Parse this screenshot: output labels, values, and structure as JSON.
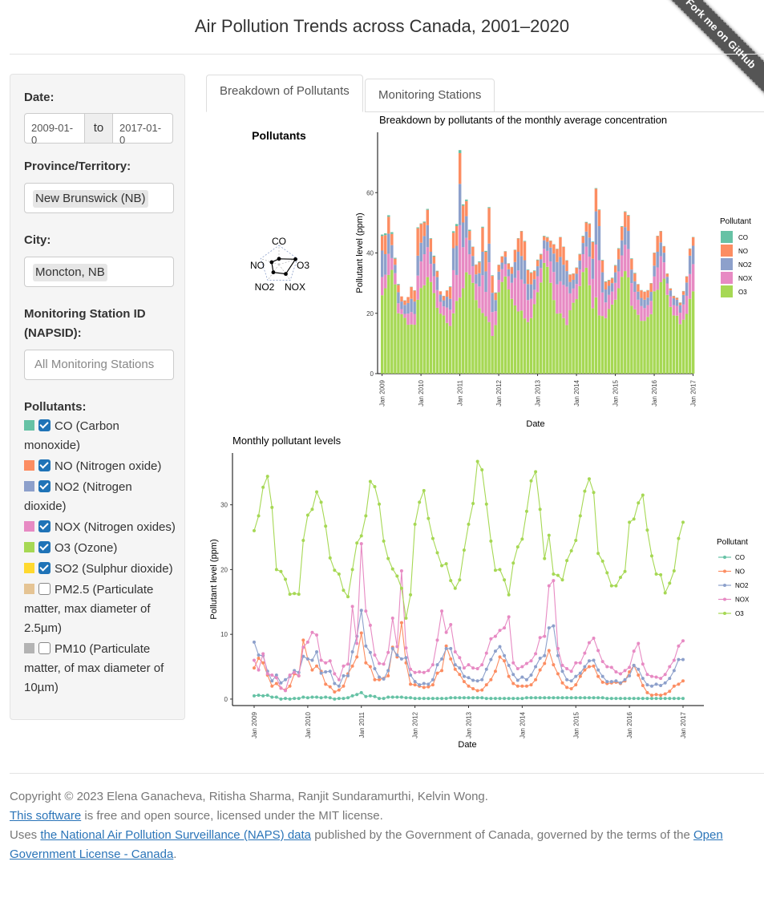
{
  "page": {
    "title": "Air Pollution Trends across Canada, 2001–2020",
    "ribbon": "Fork me on GitHub"
  },
  "sidebar": {
    "date_label": "Date:",
    "date_from": "2009-01-0",
    "date_sep": "to",
    "date_to": "2017-01-0",
    "province_label": "Province/Territory:",
    "province_value": "New Brunswick (NB)",
    "city_label": "City:",
    "city_value": "Moncton, NB",
    "station_label_1": "Monitoring Station ID",
    "station_label_2": "(NAPSID):",
    "station_placeholder": "All Monitoring Stations",
    "pollutants_label": "Pollutants:",
    "pollutants": [
      {
        "lines": [
          "CO (Carbon",
          "monoxide)"
        ],
        "color": "#66c2a5",
        "checked": true
      },
      {
        "lines": [
          "NO (Nitrogen oxide)"
        ],
        "color": "#fc8d62",
        "checked": true
      },
      {
        "lines": [
          "NO2 (Nitrogen",
          "dioxide)"
        ],
        "color": "#8da0cb",
        "checked": true
      },
      {
        "lines": [
          "NOX (Nitrogen oxides)"
        ],
        "color": "#e78ac3",
        "checked": true
      },
      {
        "lines": [
          "O3 (Ozone)"
        ],
        "color": "#a6d854",
        "checked": true
      },
      {
        "lines": [
          "SO2 (Sulphur dioxide)"
        ],
        "color": "#ffd92f",
        "checked": true
      },
      {
        "lines": [
          "PM2.5 (Particulate",
          "matter, max diameter of",
          "2.5µm)"
        ],
        "color": "#e5c494",
        "checked": false
      },
      {
        "lines": [
          "PM10 (Particulate",
          "matter, of max diameter of",
          "10µm)"
        ],
        "color": "#b3b3b3",
        "checked": false
      }
    ]
  },
  "tabs": {
    "active": "Breakdown of Pollutants",
    "other": "Monitoring Stations"
  },
  "radar": {
    "title": "Pollutants",
    "labels": [
      "CO",
      "O3",
      "NOX",
      "NO2",
      "NO"
    ]
  },
  "chart_data": [
    {
      "type": "bar",
      "title": "Breakdown by pollutants of the monthly average concentration",
      "xlabel": "Date",
      "ylabel": "Pollutant level (ppm)",
      "yticks": [
        0,
        20,
        40,
        60
      ],
      "ylim": [
        0,
        80
      ],
      "xticks": [
        "Jan 2009",
        "Jan 2010",
        "Jan 2011",
        "Jan 2012",
        "Jan 2013",
        "Jan 2014",
        "Jan 2015",
        "Jan 2016",
        "Jan 2017"
      ],
      "legend_title": "Pollutant",
      "legend_entries": [
        "CO",
        "NO",
        "NO2",
        "NOX",
        "O3"
      ],
      "stacked": true
    },
    {
      "type": "line",
      "title": "Monthly pollutant levels",
      "xlabel": "Date",
      "ylabel": "Pollutant level (ppm)",
      "yticks": [
        0,
        10,
        20,
        30
      ],
      "ylim": [
        -1,
        38
      ],
      "xticks": [
        "Jan 2009",
        "Jan 2010",
        "Jan 2011",
        "Jan 2012",
        "Jan 2013",
        "Jan 2014",
        "Jan 2015",
        "Jan 2016",
        "Jan 2017"
      ],
      "legend_title": "Pollutant",
      "start": "2009-01",
      "series": [
        {
          "name": "CO",
          "color": "#66c2a5",
          "values": [
            0.5,
            0.6,
            0.5,
            0.6,
            0.3,
            0.3,
            0.0,
            0.1,
            0.0,
            0.1,
            0.1,
            0.3,
            0.2,
            0.3,
            0.3,
            0.2,
            0.3,
            0.2,
            0.0,
            0.1,
            0.1,
            0.2,
            0.5,
            0.7,
            1.0,
            0.4,
            0.5,
            0.4,
            0.1,
            0.1,
            0.3,
            0.3,
            0.3,
            0.3,
            0.2,
            0.2,
            0.1,
            0.1,
            0.1,
            0.1,
            0.1,
            0.1,
            0.1,
            0.1,
            0.2,
            0.2,
            0.2,
            0.2,
            0.2,
            0.2,
            0.2,
            0.2,
            0.1,
            0.1,
            0.1,
            0.1,
            0.1,
            0.1,
            0.1,
            0.1,
            0.1,
            0.2,
            0.2,
            0.2,
            0.2,
            0.2,
            0.2,
            0.2,
            0.2,
            0.2,
            0.2,
            0.2,
            0.2,
            0.2,
            0.2,
            0.2,
            0.2,
            0.2,
            0.2,
            0.1,
            0.1,
            0.1,
            0.1,
            0.1,
            0.1,
            0.1,
            0.1,
            0.1,
            0.1,
            0.1,
            0.1,
            0.1,
            0.1,
            0.1,
            0.1,
            0.1,
            0.1
          ]
        },
        {
          "name": "NO",
          "color": "#fc8d62",
          "values": [
            4.8,
            6.3,
            5.6,
            3.7,
            2.0,
            2.4,
            1.7,
            1.4,
            2.0,
            3.9,
            3.6,
            9.1,
            6.2,
            4.5,
            5.1,
            4.3,
            2.3,
            1.9,
            1.1,
            1.4,
            2.0,
            3.9,
            5.1,
            6.5,
            10.2,
            5.6,
            5.0,
            3.0,
            3.0,
            3.2,
            3.6,
            8.0,
            6.5,
            11.8,
            5.6,
            2.3,
            2.2,
            2.0,
            1.8,
            1.9,
            2.2,
            4.0,
            4.4,
            8.2,
            6.2,
            4.6,
            3.8,
            2.7,
            2.0,
            1.6,
            1.3,
            1.4,
            2.2,
            3.0,
            4.3,
            6.5,
            5.9,
            3.5,
            2.4,
            2.0,
            2.0,
            2.0,
            2.2,
            3.0,
            4.5,
            5.5,
            7.5,
            5.3,
            3.9,
            2.5,
            1.8,
            1.6,
            2.2,
            3.5,
            4.5,
            5.0,
            5.1,
            3.5,
            2.6,
            2.4,
            2.5,
            2.6,
            2.4,
            2.8,
            4.2,
            5.2,
            3.7,
            2.1,
            1.0,
            0.6,
            0.7,
            0.6,
            0.8,
            1.2,
            2.0,
            2.3,
            2.8
          ]
        },
        {
          "name": "NO2",
          "color": "#8da0cb",
          "values": [
            8.8,
            6.8,
            6.7,
            4.3,
            2.8,
            3.7,
            2.5,
            3.0,
            3.5,
            4.4,
            4.1,
            6.6,
            6.2,
            6.0,
            7.3,
            4.0,
            4.2,
            4.3,
            2.4,
            2.0,
            3.6,
            3.6,
            7.3,
            9.7,
            13.7,
            8.2,
            7.2,
            4.7,
            3.4,
            3.1,
            4.4,
            7.8,
            6.8,
            6.2,
            6.4,
            3.7,
            2.7,
            2.2,
            2.4,
            2.3,
            3.0,
            5.3,
            6.2,
            7.8,
            7.8,
            5.3,
            4.8,
            3.5,
            3.3,
            2.9,
            2.8,
            3.0,
            4.6,
            6.1,
            7.4,
            8.1,
            6.7,
            5.2,
            3.8,
            2.9,
            3.4,
            3.0,
            3.7,
            5.0,
            6.3,
            6.7,
            11.0,
            11.3,
            6.7,
            4.3,
            3.0,
            2.8,
            3.5,
            4.0,
            5.0,
            5.9,
            6.0,
            4.5,
            3.5,
            2.7,
            2.7,
            2.8,
            2.5,
            3.0,
            3.6,
            5.2,
            4.6,
            3.2,
            2.2,
            2.0,
            2.3,
            2.1,
            2.5,
            3.2,
            4.4,
            6.1,
            6.1
          ]
        },
        {
          "name": "NOX",
          "color": "#e78ac3",
          "values": [
            6.0,
            4.5,
            7.0,
            3.9,
            3.7,
            3.3,
            1.7,
            1.3,
            3.7,
            4.1,
            3.6,
            8.0,
            8.8,
            10.3,
            9.9,
            6.0,
            5.6,
            5.9,
            3.9,
            3.0,
            5.1,
            5.4,
            14.3,
            8.6,
            24.0,
            13.6,
            11.4,
            6.8,
            5.5,
            5.4,
            7.2,
            12.5,
            8.1,
            19.8,
            7.9,
            4.6,
            4.1,
            4.2,
            4.1,
            4.4,
            5.3,
            9.1,
            13.6,
            10.3,
            11.5,
            7.3,
            6.4,
            4.8,
            5.3,
            4.8,
            4.7,
            5.3,
            7.1,
            9.3,
            9.7,
            10.6,
            11.0,
            12.7,
            5.6,
            4.7,
            5.0,
            5.5,
            5.9,
            7.0,
            9.5,
            9.7,
            17.5,
            18.3,
            7.8,
            5.2,
            4.7,
            4.3,
            5.6,
            5.6,
            7.1,
            8.7,
            9.4,
            7.5,
            5.8,
            5.0,
            4.9,
            4.2,
            3.9,
            4.4,
            4.9,
            7.4,
            8.6,
            5.4,
            3.8,
            3.5,
            3.4,
            3.2,
            3.8,
            5.0,
            6.0,
            8.2,
            9.0
          ]
        },
        {
          "name": "O3",
          "color": "#a6d854",
          "values": [
            26.0,
            28.3,
            32.7,
            34.4,
            29.6,
            20.0,
            19.7,
            18.5,
            16.2,
            16.3,
            16.2,
            24.5,
            28.4,
            29.3,
            32.0,
            30.4,
            26.7,
            21.8,
            19.9,
            19.3,
            16.8,
            15.8,
            20.0,
            24.1,
            25.2,
            28.3,
            33.6,
            32.8,
            30.1,
            24.4,
            21.7,
            20.1,
            19.0,
            17.1,
            12.5,
            16.1,
            27.0,
            30.4,
            32.2,
            27.9,
            24.8,
            22.6,
            20.6,
            20.9,
            18.3,
            17.1,
            18.4,
            23.0,
            27.0,
            30.2,
            36.7,
            35.4,
            30.1,
            24.4,
            19.9,
            20.0,
            18.4,
            16.1,
            21.0,
            23.5,
            24.7,
            29.0,
            33.7,
            35.1,
            29.3,
            21.7,
            25.3,
            19.3,
            19.1,
            18.4,
            21.4,
            22.9,
            24.5,
            28.3,
            32.1,
            34.0,
            31.9,
            22.5,
            21.3,
            19.5,
            17.5,
            17.5,
            18.8,
            19.7,
            27.3,
            27.8,
            30.3,
            31.5,
            26.1,
            22.1,
            19.3,
            19.2,
            16.4,
            17.9,
            19.8,
            24.8,
            27.3
          ]
        }
      ]
    }
  ],
  "footer": {
    "copyright": "Copyright © 2023 Elena Ganacheva, Ritisha Sharma, Ranjit Sundaramurthi, Kelvin Wong.",
    "software_link": "This software",
    "software_rest": " is free and open source, licensed under the MIT license.",
    "uses": "Uses ",
    "data_link": "the National Air Pollution Surveillance (NAPS) data",
    "published": " published by the Government of Canada, governed by the terms of the ",
    "license_link": "Open Government License - Canada",
    "end": "."
  }
}
